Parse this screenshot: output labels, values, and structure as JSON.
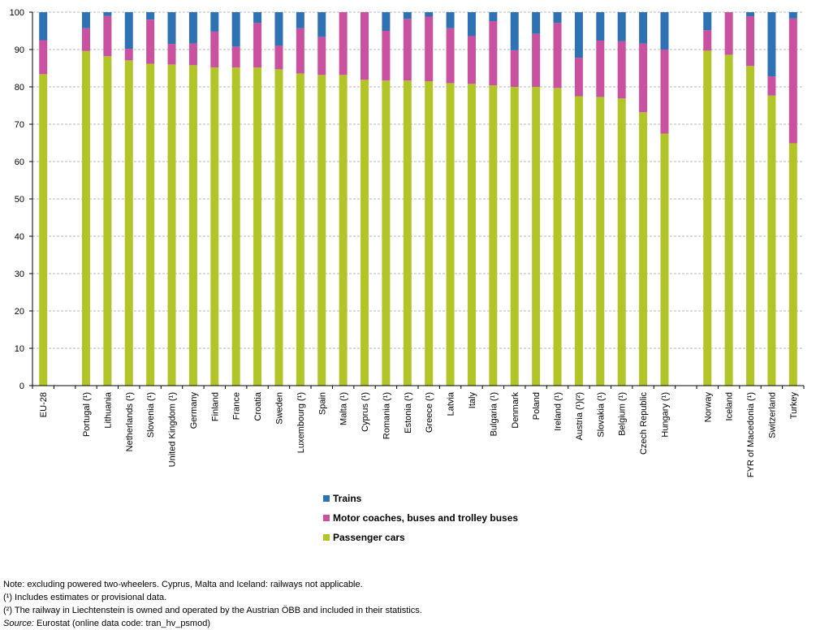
{
  "colors": {
    "trains": "#2f72b4",
    "buses": "#c9519f",
    "cars": "#b2c428",
    "grid": "#b7b7b7",
    "axis": "#000000"
  },
  "chart_data": {
    "type": "bar",
    "stacked": true,
    "title": "",
    "xlabel": "",
    "ylabel": "",
    "ylim": [
      0,
      100
    ],
    "yticks": [
      0,
      10,
      20,
      30,
      40,
      50,
      60,
      70,
      80,
      90,
      100
    ],
    "grid": true,
    "legend_position": "bottom-center",
    "categories": [
      "EU-28",
      "",
      "Portugal (¹)",
      "Lithuania",
      "Netherlands (¹)",
      "Slovenia (¹)",
      "United Kingdom (¹)",
      "Germany",
      "Finland",
      "France",
      "Croatia",
      "Sweden",
      "Luxembourg (¹)",
      "Spain",
      "Malta (¹)",
      "Cyprus (¹)",
      "Romania (¹)",
      "Estonia (¹)",
      "Greece (¹)",
      "Latvia",
      "Italy",
      "Bulgaria (¹)",
      "Denmark",
      "Poland",
      "Ireland (¹)",
      "Austria (¹)(²)",
      "Slovakia (¹)",
      "Belgium (¹)",
      "Czech Republic",
      "Hungary (¹)",
      "",
      "Norway",
      "Iceland",
      "FYR of Macedonia (¹)",
      "Switzerland",
      "Turkey"
    ],
    "series": [
      {
        "name": "Passenger cars",
        "color": "#b2c428",
        "values": [
          83.4,
          null,
          89.6,
          88.2,
          87.1,
          86.2,
          86.0,
          85.8,
          85.2,
          85.2,
          85.2,
          84.7,
          83.6,
          83.2,
          83.2,
          81.9,
          81.7,
          81.7,
          81.5,
          81.0,
          80.8,
          80.4,
          80.0,
          80.0,
          79.7,
          77.5,
          77.3,
          76.9,
          73.2,
          67.5,
          null,
          89.7,
          88.6,
          85.6,
          77.7,
          64.9
        ]
      },
      {
        "name": "Motor coaches, buses and trolley buses",
        "color": "#c9519f",
        "values": [
          9.1,
          null,
          6.1,
          10.8,
          3.1,
          11.8,
          5.5,
          5.8,
          9.6,
          5.6,
          11.9,
          6.3,
          12.1,
          10.2,
          16.8,
          18.1,
          13.3,
          16.5,
          17.3,
          14.7,
          12.8,
          17.2,
          9.8,
          14.2,
          17.4,
          10.3,
          15.1,
          15.3,
          18.4,
          22.5,
          null,
          5.5,
          11.4,
          13.3,
          5.1,
          33.4
        ]
      },
      {
        "name": "Trains",
        "color": "#2f72b4",
        "values": [
          7.5,
          null,
          4.3,
          1.0,
          9.8,
          2.0,
          8.5,
          8.4,
          5.2,
          9.2,
          2.9,
          9.0,
          4.3,
          6.6,
          0.0,
          0.0,
          5.0,
          1.8,
          1.2,
          4.3,
          6.4,
          2.4,
          10.2,
          5.8,
          2.9,
          12.2,
          7.6,
          7.8,
          8.4,
          10.0,
          null,
          4.8,
          0.0,
          1.1,
          17.2,
          1.7
        ]
      }
    ]
  },
  "legend": {
    "trains": "Trains",
    "buses": "Motor coaches, buses and trolley buses",
    "cars": "Passenger cars"
  },
  "notes": {
    "line1": "Note: excluding powered two-wheelers. Cyprus, Malta and Iceland: railways not applicable.",
    "line2": "(¹) Includes estimates or provisional data.",
    "line3": "(²) The railway in Liechtenstein is owned and operated by the Austrian ÖBB and included in their statistics.",
    "source_label": "Source:",
    "source_text": " Eurostat (online data code: tran_hv_psmod)"
  }
}
